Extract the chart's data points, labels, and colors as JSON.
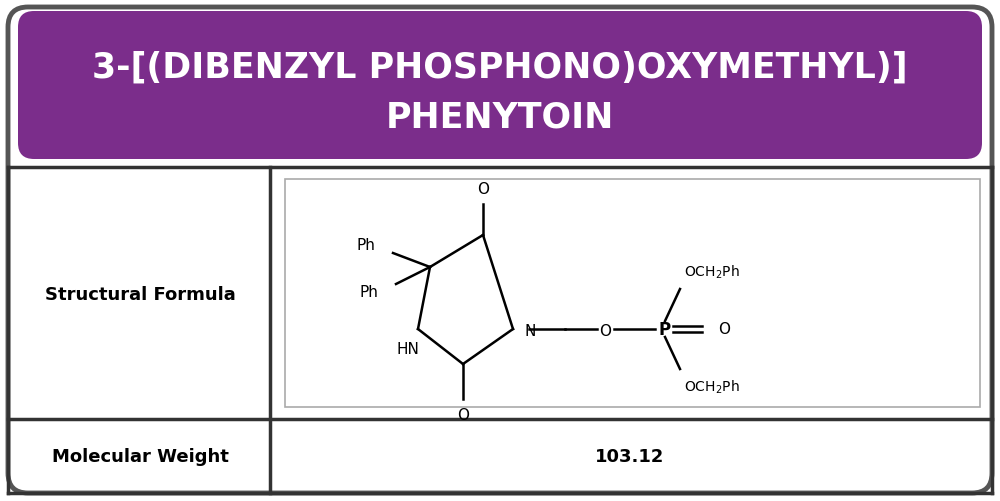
{
  "title_line1": "3-[(DIBENZYL PHOSPHONO)OXYMETHYL)]",
  "title_line2": "PHENYTOIN",
  "title_bg_color": "#7B2D8B",
  "title_text_color": "#FFFFFF",
  "table_border_color": "#333333",
  "label1": "Structural Formula",
  "label2": "Molecular Weight",
  "value2": "103.12",
  "bg_color": "#FFFFFF",
  "outer_border_color": "#555555",
  "struct_box_color": "#AAAAAA",
  "fig_width": 10.0,
  "fig_height": 5.02
}
